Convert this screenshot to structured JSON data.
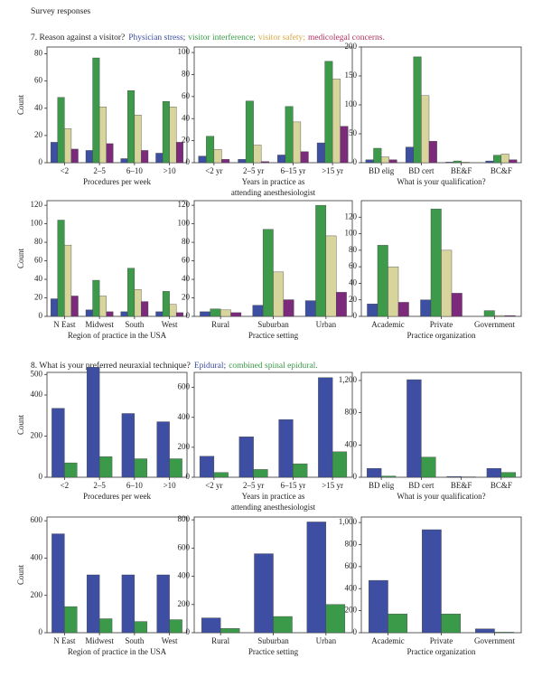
{
  "title": "Survey responses",
  "questions": [
    {
      "text": "7. Reason against a visitor?",
      "legend": [
        {
          "label": "Physician stress;",
          "color": "#3a4d9e"
        },
        {
          "label": "visitor interference;",
          "color": "#3a9a48"
        },
        {
          "label": "visitor safety;",
          "color": "#d8a640"
        },
        {
          "label": "medicolegal concerns.",
          "color": "#b03060"
        }
      ]
    },
    {
      "text": "8. What is your preferred neuraxial technique?",
      "legend": [
        {
          "label": "Epidural;",
          "color": "#3a4d9e"
        },
        {
          "label": "combined spinal epidural.",
          "color": "#3a9a48"
        }
      ]
    }
  ],
  "chart_data": [
    {
      "type": "bar",
      "ylabel": "Count",
      "xlabel": [
        "Procedures per week"
      ],
      "categories": [
        "<2",
        "2–5",
        "6–10",
        ">10"
      ],
      "ylim": [
        0,
        85
      ],
      "yticks": [
        0,
        20,
        40,
        60,
        80
      ],
      "series": [
        {
          "color": "#3c4fa0",
          "values": [
            15,
            9,
            3,
            7
          ]
        },
        {
          "color": "#3c9a4a",
          "values": [
            48,
            77,
            53,
            45
          ]
        },
        {
          "color": "#d8d59c",
          "values": [
            25,
            41,
            35,
            41
          ]
        },
        {
          "color": "#7b2a7c",
          "values": [
            10,
            14,
            9,
            15
          ]
        }
      ]
    },
    {
      "type": "bar",
      "xlabel": [
        "Years in practice as",
        "attending anesthesiologist"
      ],
      "categories": [
        "<2 yr",
        "2–5 yr",
        "6–15 yr",
        ">15 yr"
      ],
      "ylim": [
        0,
        105
      ],
      "yticks": [
        0,
        20,
        40,
        60,
        80,
        100
      ],
      "series": [
        {
          "color": "#3c4fa0",
          "values": [
            6,
            3,
            7,
            18
          ]
        },
        {
          "color": "#3c9a4a",
          "values": [
            24,
            56,
            51,
            92
          ]
        },
        {
          "color": "#d8d59c",
          "values": [
            12,
            16,
            37,
            76
          ]
        },
        {
          "color": "#7b2a7c",
          "values": [
            3,
            1,
            10,
            33
          ]
        }
      ]
    },
    {
      "type": "bar",
      "xlabel": [
        "What is your qualification?"
      ],
      "categories": [
        "BD elig",
        "BD cert",
        "BE&F",
        "BC&F"
      ],
      "ylim": [
        0,
        200
      ],
      "yticks": [
        0,
        50,
        100,
        150,
        200
      ],
      "series": [
        {
          "color": "#3c4fa0",
          "values": [
            5,
            27,
            1,
            3
          ]
        },
        {
          "color": "#3c9a4a",
          "values": [
            25,
            183,
            3,
            13
          ]
        },
        {
          "color": "#d8d59c",
          "values": [
            10,
            116,
            1,
            15
          ]
        },
        {
          "color": "#7b2a7c",
          "values": [
            5,
            37,
            0,
            5
          ]
        }
      ]
    },
    {
      "type": "bar",
      "ylabel": "Count",
      "xlabel": [
        "Region of practice in the USA"
      ],
      "categories": [
        "N East",
        "Midwest",
        "South",
        "West"
      ],
      "ylim": [
        0,
        125
      ],
      "yticks": [
        0,
        20,
        40,
        60,
        80,
        100,
        120
      ],
      "series": [
        {
          "color": "#3c4fa0",
          "values": [
            19,
            7,
            5,
            5
          ]
        },
        {
          "color": "#3c9a4a",
          "values": [
            104,
            39,
            52,
            27
          ]
        },
        {
          "color": "#d8d59c",
          "values": [
            77,
            22,
            29,
            13
          ]
        },
        {
          "color": "#7b2a7c",
          "values": [
            22,
            5,
            16,
            4
          ]
        }
      ]
    },
    {
      "type": "bar",
      "xlabel": [
        "Practice setting"
      ],
      "categories": [
        "Rural",
        "Suburban",
        "Urban"
      ],
      "ylim": [
        0,
        125
      ],
      "yticks": [
        0,
        20,
        40,
        60,
        80,
        100,
        120
      ],
      "series": [
        {
          "color": "#3c4fa0",
          "values": [
            5,
            12,
            17
          ]
        },
        {
          "color": "#3c9a4a",
          "values": [
            8,
            94,
            120
          ]
        },
        {
          "color": "#d8d59c",
          "values": [
            7,
            48,
            87
          ]
        },
        {
          "color": "#7b2a7c",
          "values": [
            4,
            18,
            26
          ]
        }
      ]
    },
    {
      "type": "bar",
      "xlabel": [
        "Practice organization"
      ],
      "categories": [
        "Academic",
        "Private",
        "Government"
      ],
      "ylim": [
        0,
        140
      ],
      "yticks": [
        0,
        20,
        40,
        60,
        80,
        100,
        120
      ],
      "series": [
        {
          "color": "#3c4fa0",
          "values": [
            15,
            20,
            0
          ]
        },
        {
          "color": "#3c9a4a",
          "values": [
            86,
            130,
            7
          ]
        },
        {
          "color": "#d8d59c",
          "values": [
            60,
            80,
            1
          ]
        },
        {
          "color": "#7b2a7c",
          "values": [
            17,
            28,
            1
          ]
        }
      ]
    },
    {
      "type": "bar",
      "ylabel": "Count",
      "xlabel": [
        "Procedures per week"
      ],
      "categories": [
        "<2",
        "2–5",
        "6–10",
        ">10"
      ],
      "ylim": [
        0,
        510
      ],
      "yticks": [
        0,
        200,
        400,
        500
      ],
      "series": [
        {
          "color": "#3e4fa3",
          "values": [
            335,
            535,
            310,
            270
          ]
        },
        {
          "color": "#3b9a4a",
          "values": [
            70,
            100,
            90,
            90
          ]
        }
      ]
    },
    {
      "type": "bar",
      "xlabel": [
        "Years in practice as",
        "attending anesthesiologist"
      ],
      "categories": [
        "<2 yr",
        "2–5 yr",
        "6–15 yr",
        ">15 yr"
      ],
      "ylim": [
        0,
        700
      ],
      "yticks": [
        0,
        200,
        400,
        600
      ],
      "series": [
        {
          "color": "#3e4fa3",
          "values": [
            140,
            270,
            385,
            665
          ]
        },
        {
          "color": "#3b9a4a",
          "values": [
            32,
            52,
            90,
            170
          ]
        }
      ]
    },
    {
      "type": "bar",
      "xlabel": [
        "What is your qualification?"
      ],
      "categories": [
        "BD elig",
        "BD cert",
        "BE&F",
        "BC&F"
      ],
      "ylim": [
        0,
        1300
      ],
      "yticks": [
        0,
        400,
        800,
        {
          "value": 1200,
          "label": "1,200"
        }
      ],
      "series": [
        {
          "color": "#3e4fa3",
          "values": [
            110,
            1210,
            10,
            110
          ]
        },
        {
          "color": "#3b9a4a",
          "values": [
            15,
            250,
            5,
            60
          ]
        }
      ]
    },
    {
      "type": "bar",
      "ylabel": "Count",
      "xlabel": [
        "Region of practice in the USA"
      ],
      "categories": [
        "N East",
        "Midwest",
        "South",
        "West"
      ],
      "ylim": [
        0,
        620
      ],
      "yticks": [
        0,
        200,
        400,
        600
      ],
      "series": [
        {
          "color": "#3e4fa3",
          "values": [
            530,
            310,
            310,
            310
          ]
        },
        {
          "color": "#3b9a4a",
          "values": [
            140,
            75,
            60,
            70
          ]
        }
      ]
    },
    {
      "type": "bar",
      "xlabel": [
        "Practice setting"
      ],
      "categories": [
        "Rural",
        "Suburban",
        "Urban"
      ],
      "ylim": [
        0,
        820
      ],
      "yticks": [
        0,
        200,
        400,
        600,
        800
      ],
      "series": [
        {
          "color": "#3e4fa3",
          "values": [
            105,
            560,
            785
          ]
        },
        {
          "color": "#3b9a4a",
          "values": [
            30,
            115,
            200
          ]
        }
      ]
    },
    {
      "type": "bar",
      "xlabel": [
        "Practice organization"
      ],
      "categories": [
        "Academic",
        "Private",
        "Government"
      ],
      "ylim": [
        0,
        1050
      ],
      "yticks": [
        0,
        200,
        400,
        600,
        800,
        {
          "value": 1000,
          "label": "1,000"
        }
      ],
      "series": [
        {
          "color": "#3e4fa3",
          "values": [
            475,
            935,
            35
          ]
        },
        {
          "color": "#3b9a4a",
          "values": [
            170,
            170,
            5
          ]
        }
      ]
    }
  ]
}
